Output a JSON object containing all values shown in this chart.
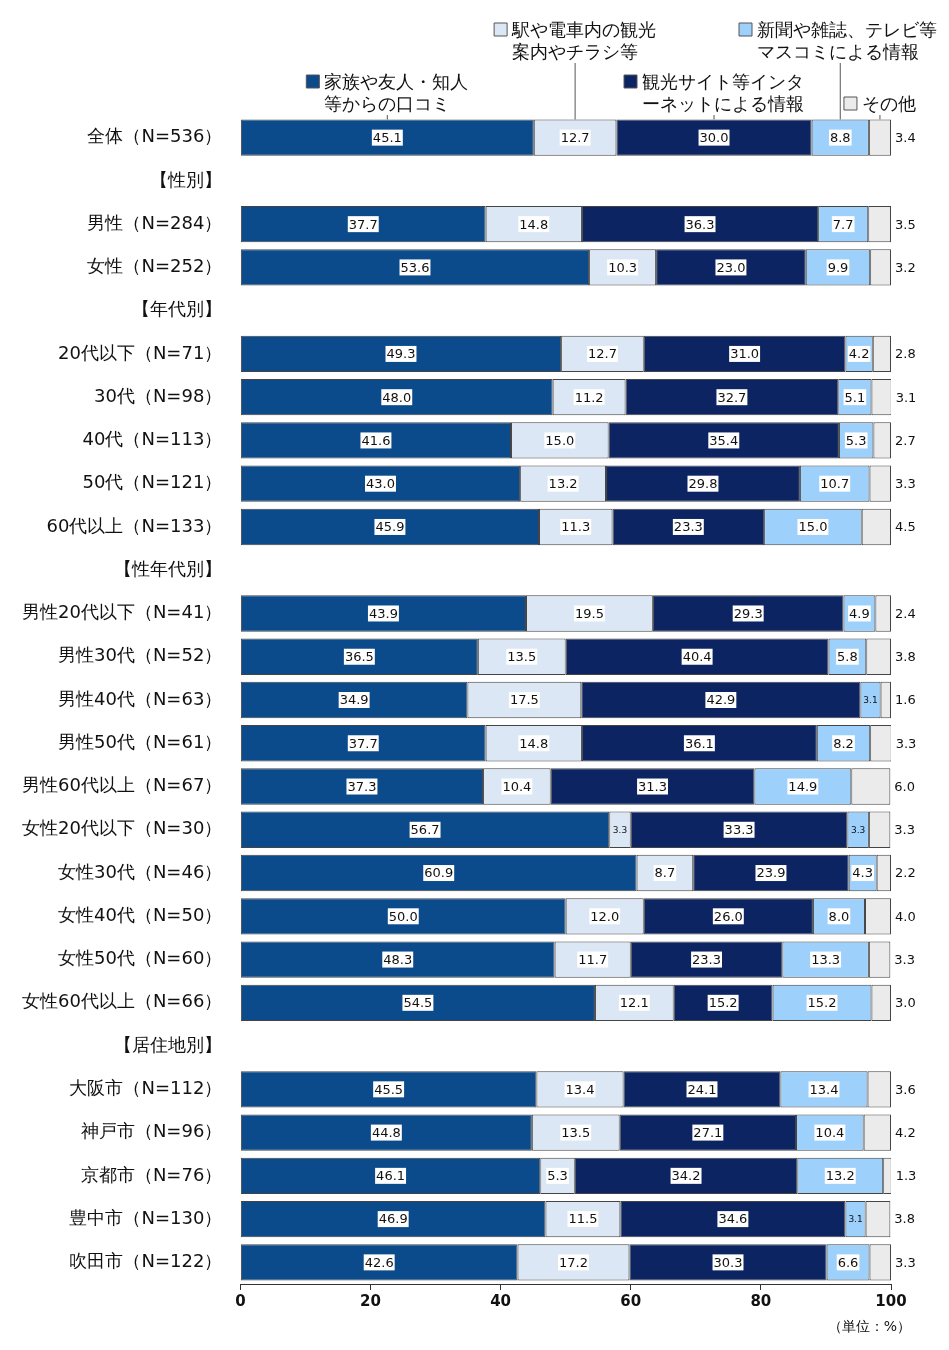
{
  "chart_data": {
    "type": "bar",
    "orientation": "horizontal",
    "stacked": true,
    "categories": [
      "全体（N=536）",
      "【性別】",
      "男性（N=284）",
      "女性（N=252）",
      "【年代別】",
      "20代以下（N=71）",
      "30代（N=98）",
      "40代（N=113）",
      "50代（N=121）",
      "60代以上（N=133）",
      "【性年代別】",
      "男性20代以下（N=41）",
      "男性30代（N=52）",
      "男性40代（N=63）",
      "男性50代（N=61）",
      "男性60代以上（N=67）",
      "女性20代以下（N=30）",
      "女性30代（N=46）",
      "女性40代（N=50）",
      "女性50代（N=60）",
      "女性60代以上（N=66）",
      "【居住地別】",
      "大阪市（N=112）",
      "神戸市（N=96）",
      "京都市（N=76）",
      "豊中市（N=130）",
      "吹田市（N=122）"
    ],
    "series": [
      {
        "name": "家族や友人・知人等からの口コミ",
        "color": "#0b4a8b",
        "values": [
          45.1,
          null,
          37.7,
          53.6,
          null,
          49.3,
          48.0,
          41.6,
          43.0,
          45.9,
          null,
          43.9,
          36.5,
          34.9,
          37.7,
          37.3,
          56.7,
          60.9,
          50.0,
          48.3,
          54.5,
          null,
          45.5,
          44.8,
          46.1,
          46.9,
          42.6
        ],
        "value_labels": [
          "45.1",
          null,
          "37.7",
          "53.6",
          null,
          "49.3",
          "48.0",
          "41.6",
          "43.0",
          "45.9",
          null,
          "43.9",
          "36.5",
          "34.9",
          "37.7",
          "37.3",
          "56.7",
          "60.9",
          "50.0",
          "48.3",
          "54.5",
          null,
          "45.5",
          "44.8",
          "46.1",
          "46.9",
          "42.6"
        ]
      },
      {
        "name": "駅や電車内の観光案内やチラシ等",
        "color": "#dbe7f4",
        "values": [
          12.7,
          null,
          14.8,
          10.3,
          null,
          12.7,
          11.2,
          15.0,
          13.2,
          11.3,
          null,
          19.5,
          13.5,
          17.5,
          14.8,
          10.4,
          3.3,
          8.7,
          12.0,
          11.7,
          12.1,
          null,
          13.4,
          13.5,
          5.3,
          11.5,
          17.2
        ],
        "value_labels": [
          "12.7",
          null,
          "14.8",
          "10.3",
          null,
          "12.7",
          "11.2",
          "15.0",
          "13.2",
          "11.3",
          null,
          "19.5",
          "13.5",
          "17.5",
          "14.8",
          "10.4",
          "3.3",
          "8.7",
          "12.0",
          "11.7",
          "12.1",
          null,
          "13.4",
          "13.5",
          "5.3",
          "11.5",
          "17.2"
        ]
      },
      {
        "name": "観光サイト等インターネットによる情報",
        "color": "#0c2461",
        "values": [
          30.0,
          null,
          36.3,
          23.0,
          null,
          31.0,
          32.7,
          35.4,
          29.8,
          23.3,
          null,
          29.3,
          40.4,
          42.9,
          36.1,
          31.3,
          33.3,
          23.9,
          26.0,
          23.3,
          15.2,
          null,
          24.1,
          27.1,
          34.2,
          34.6,
          30.3
        ],
        "value_labels": [
          "30.0",
          null,
          "36.3",
          "23.0",
          null,
          "31.0",
          "32.7",
          "35.4",
          "29.8",
          "23.3",
          null,
          "29.3",
          "40.4",
          "42.9",
          "36.1",
          "31.3",
          "33.3",
          "23.9",
          "26.0",
          "23.3",
          "15.2",
          null,
          "24.1",
          "27.1",
          "34.2",
          "34.6",
          "30.3"
        ]
      },
      {
        "name": "新聞や雑誌、テレビ等マスコミによる情報",
        "color": "#9dd0fb",
        "values": [
          8.8,
          null,
          7.7,
          9.9,
          null,
          4.2,
          5.1,
          5.3,
          10.7,
          15.0,
          null,
          4.9,
          5.8,
          3.1,
          8.2,
          14.9,
          3.3,
          4.3,
          8.0,
          13.3,
          15.2,
          null,
          13.4,
          10.4,
          13.2,
          3.1,
          6.6
        ],
        "value_labels": [
          "8.8",
          null,
          "7.7",
          "9.9",
          null,
          "4.2",
          "5.1",
          "5.3",
          "10.7",
          "15.0",
          null,
          "4.9",
          "5.8",
          "3.1",
          "8.2",
          "14.9",
          "3.3",
          "4.3",
          "8.0",
          "13.3",
          "15.2",
          null,
          "13.4",
          "10.4",
          "13.2",
          "3.1",
          "6.6"
        ]
      },
      {
        "name": "その他",
        "color": "#ebebeb",
        "values": [
          3.4,
          null,
          3.5,
          3.2,
          null,
          2.8,
          3.1,
          2.7,
          3.3,
          4.5,
          null,
          2.4,
          3.8,
          1.6,
          3.3,
          6.0,
          3.3,
          2.2,
          4.0,
          3.3,
          3.0,
          null,
          3.6,
          4.2,
          1.3,
          3.8,
          3.3
        ],
        "value_labels": [
          "3.4",
          null,
          "3.5",
          "3.2",
          null,
          "2.8",
          "3.1",
          "2.7",
          "3.3",
          "4.5",
          null,
          "2.4",
          "3.8",
          "1.6",
          "3.3",
          "6.0",
          "3.3",
          "2.2",
          "4.0",
          "3.3",
          "3.0",
          null,
          "3.6",
          "4.2",
          "1.3",
          "3.8",
          "3.3"
        ]
      }
    ],
    "legend": "top",
    "xlim": [
      0,
      100
    ],
    "xticks": [
      0,
      20,
      40,
      60,
      80,
      100
    ],
    "annotations": [
      "（単位：%）"
    ]
  }
}
